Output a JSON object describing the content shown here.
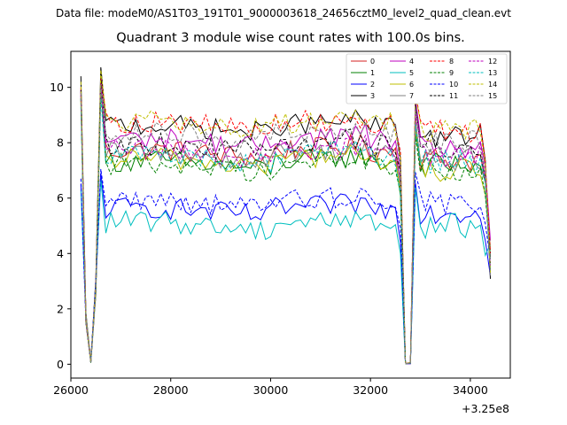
{
  "chart_data": {
    "type": "line",
    "suptitle": "Data file: modeM0/AS1T03_191T01_9000003618_24656cztM0_level2_quad_clean.evt",
    "title": "Quadrant 3 module wise count rates with 100.0s bins.",
    "xlabel": "",
    "ylabel": "",
    "x_offset_label": "+3.25e8",
    "xlim": [
      26000,
      34800
    ],
    "ylim": [
      -0.5,
      11.3
    ],
    "x_ticks": [
      26000,
      28000,
      30000,
      32000,
      34000
    ],
    "x_tick_labels": [
      "26000",
      "28000",
      "30000",
      "32000",
      "34000"
    ],
    "y_ticks": [
      0,
      2,
      4,
      6,
      8,
      10
    ],
    "y_tick_labels": [
      "0",
      "2",
      "4",
      "6",
      "8",
      "10"
    ],
    "grid": false,
    "legend_position": "top-right",
    "segments": [
      {
        "start": 26200,
        "end": 32700,
        "step": 100
      },
      {
        "start": 32700,
        "end": 34400,
        "step": 100
      }
    ],
    "series": [
      {
        "name": "0",
        "color": "#d62020",
        "dash": "solid",
        "levels": {
          "pre": 9.8,
          "mid": 7.6,
          "post": 7.8,
          "late": 7.4
        }
      },
      {
        "name": "1",
        "color": "#008000",
        "dash": "solid",
        "levels": {
          "pre": 9.6,
          "mid": 7.2,
          "post": 7.4,
          "late": 7.2
        }
      },
      {
        "name": "2",
        "color": "#0000ff",
        "dash": "solid",
        "levels": {
          "pre": 6.5,
          "mid": 5.5,
          "post": 5.6,
          "late": 5.5
        }
      },
      {
        "name": "3",
        "color": "#000000",
        "dash": "solid",
        "levels": {
          "pre": 10.4,
          "mid": 8.5,
          "post": 8.5,
          "late": 8.2
        }
      },
      {
        "name": "4",
        "color": "#bf00bf",
        "dash": "solid",
        "levels": {
          "pre": 9.9,
          "mid": 8.0,
          "post": 8.2,
          "late": 7.8
        }
      },
      {
        "name": "5",
        "color": "#00bfbf",
        "dash": "solid",
        "levels": {
          "pre": 6.3,
          "mid": 5.0,
          "post": 5.1,
          "late": 5.0
        }
      },
      {
        "name": "6",
        "color": "#bfbf00",
        "dash": "solid",
        "levels": {
          "pre": 9.5,
          "mid": 7.3,
          "post": 7.3,
          "late": 7.0
        }
      },
      {
        "name": "7",
        "color": "#808080",
        "dash": "solid",
        "levels": {
          "pre": 9.7,
          "mid": 7.5,
          "post": 7.7,
          "late": 7.4
        }
      },
      {
        "name": "8",
        "color": "#ff0000",
        "dash": "dashed",
        "levels": {
          "pre": 10.0,
          "mid": 8.6,
          "post": 8.8,
          "late": 8.4
        }
      },
      {
        "name": "9",
        "color": "#008000",
        "dash": "dashed",
        "levels": {
          "pre": 9.6,
          "mid": 7.1,
          "post": 7.3,
          "late": 7.0
        }
      },
      {
        "name": "10",
        "color": "#0000ff",
        "dash": "dashed",
        "levels": {
          "pre": 6.7,
          "mid": 5.8,
          "post": 6.1,
          "late": 5.8
        }
      },
      {
        "name": "11",
        "color": "#000000",
        "dash": "dashed",
        "levels": {
          "pre": 9.9,
          "mid": 7.8,
          "post": 8.1,
          "late": 7.9
        }
      },
      {
        "name": "12",
        "color": "#bf00bf",
        "dash": "dashed",
        "levels": {
          "pre": 9.7,
          "mid": 7.6,
          "post": 7.8,
          "late": 7.6
        }
      },
      {
        "name": "13",
        "color": "#00bfbf",
        "dash": "dashed",
        "levels": {
          "pre": 9.3,
          "mid": 7.4,
          "post": 7.5,
          "late": 7.3
        }
      },
      {
        "name": "14",
        "color": "#bfbf00",
        "dash": "dashed",
        "levels": {
          "pre": 10.2,
          "mid": 8.6,
          "post": 8.7,
          "late": 8.4
        }
      },
      {
        "name": "15",
        "color": "#808080",
        "dash": "dashed",
        "levels": {
          "pre": 9.8,
          "mid": 8.2,
          "post": 8.3,
          "late": 8.0
        }
      }
    ]
  }
}
